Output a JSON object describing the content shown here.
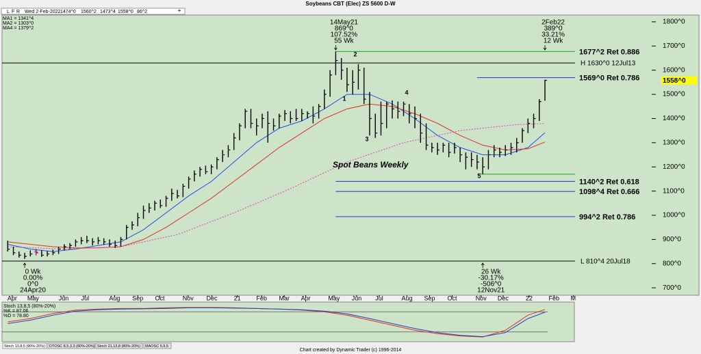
{
  "header": {
    "title": "Soybeans CBT (Elec) ZS 5600 D-W",
    "menu": [
      "L",
      "F",
      "R"
    ],
    "quote": [
      "Wed 2-Feb-2022",
      "1474^0",
      "1560^2",
      "1473^4",
      "1558^0",
      "86^2"
    ]
  },
  "footer": "Chart created by Dynamic Trader  (c) 1996-2014",
  "tabs": [
    "Stoch 13,8,5 (80%-20%)",
    "DTOSC 8,5,3,3 (80%-20%)",
    "Stoch 21,13,8 (80%-20%)",
    "MAOSC 5,9,5"
  ],
  "chart_data": [
    {
      "type": "ohlc",
      "subtitle": "Spot Beans Weekly",
      "xlim": [
        -1,
        100.2
      ],
      "ylim": [
        675,
        1828
      ],
      "xticks": [
        {
          "value": 0.8,
          "label": "Apr"
        },
        {
          "value": 4.5,
          "label": "May"
        },
        {
          "value": 9.9,
          "label": "Jun"
        },
        {
          "value": 13.7,
          "label": "Jul"
        },
        {
          "value": 18.9,
          "label": "Aug"
        },
        {
          "value": 23,
          "label": "Sep"
        },
        {
          "value": 26.9,
          "label": "Oct"
        },
        {
          "value": 31.9,
          "label": "Nov"
        },
        {
          "value": 36.1,
          "label": "Dec"
        },
        {
          "value": 40.6,
          "label": "21"
        },
        {
          "value": 44.9,
          "label": "Feb"
        },
        {
          "value": 48.9,
          "label": "Mar"
        },
        {
          "value": 52.7,
          "label": "Apr"
        },
        {
          "value": 57.7,
          "label": "May"
        },
        {
          "value": 61.7,
          "label": "Jun"
        },
        {
          "value": 65.7,
          "label": "Jul"
        },
        {
          "value": 70.6,
          "label": "Aug"
        },
        {
          "value": 74.6,
          "label": "Sep"
        },
        {
          "value": 78.6,
          "label": "Oct"
        },
        {
          "value": 83.7,
          "label": "Nov"
        },
        {
          "value": 87.6,
          "label": "Dec"
        },
        {
          "value": 92.2,
          "label": "22"
        },
        {
          "value": 96.6,
          "label": "Feb"
        },
        {
          "value": 100,
          "label": "M"
        }
      ],
      "yticks": [
        {
          "value": 700,
          "label": "700^0"
        },
        {
          "value": 800,
          "label": "800^0"
        },
        {
          "value": 900,
          "label": "900^0"
        },
        {
          "value": 1000,
          "label": "1000^0"
        },
        {
          "value": 1100,
          "label": "1100^0"
        },
        {
          "value": 1200,
          "label": "1200^0"
        },
        {
          "value": 1300,
          "label": "1300^0"
        },
        {
          "value": 1400,
          "label": "1400^0"
        },
        {
          "value": 1500,
          "label": "1500^0"
        },
        {
          "value": 1600,
          "label": "1600^0"
        },
        {
          "value": 1700,
          "label": "1700^0"
        },
        {
          "value": 1800,
          "label": "1800^0"
        }
      ],
      "last_price": {
        "value": 1558,
        "label": "1558^0"
      },
      "bars": {
        "high": [
          895,
          870,
          850,
          845,
          855,
          860,
          855,
          852,
          858,
          870,
          880,
          885,
          900,
          910,
          915,
          905,
          910,
          905,
          900,
          895,
          910,
          960,
          975,
          1010,
          1040,
          1050,
          1060,
          1065,
          1080,
          1110,
          1105,
          1130,
          1160,
          1185,
          1200,
          1205,
          1210,
          1240,
          1270,
          1290,
          1340,
          1380,
          1440,
          1440,
          1400,
          1420,
          1430,
          1400,
          1420,
          1435,
          1430,
          1440,
          1440,
          1430,
          1450,
          1460,
          1520,
          1600,
          1677,
          1650,
          1610,
          1600,
          1625,
          1610,
          1510,
          1420,
          1470,
          1470,
          1475,
          1470,
          1470,
          1460,
          1450,
          1420,
          1380,
          1300,
          1300,
          1300,
          1300,
          1300,
          1280,
          1260,
          1260,
          1250,
          1240,
          1270,
          1290,
          1280,
          1290,
          1300,
          1320,
          1360,
          1400,
          1420,
          1480,
          1560.25
        ],
        "low": [
          850,
          835,
          825,
          820,
          830,
          835,
          828,
          830,
          835,
          840,
          855,
          860,
          870,
          880,
          885,
          875,
          880,
          878,
          870,
          865,
          870,
          900,
          940,
          955,
          985,
          1010,
          1020,
          1030,
          1035,
          1060,
          1070,
          1075,
          1110,
          1140,
          1160,
          1170,
          1170,
          1190,
          1220,
          1240,
          1270,
          1310,
          1360,
          1360,
          1330,
          1360,
          1300,
          1350,
          1360,
          1390,
          1380,
          1390,
          1390,
          1400,
          1380,
          1400,
          1440,
          1490,
          1580,
          1560,
          1510,
          1500,
          1520,
          1460,
          1330,
          1320,
          1330,
          1360,
          1400,
          1400,
          1410,
          1380,
          1360,
          1300,
          1270,
          1260,
          1250,
          1260,
          1240,
          1255,
          1220,
          1190,
          1200,
          1190,
          1170,
          1190,
          1240,
          1240,
          1245,
          1250,
          1260,
          1300,
          1340,
          1360,
          1390,
          1473.5
        ],
        "close": [
          860,
          845,
          835,
          830,
          840,
          845,
          835,
          840,
          845,
          860,
          870,
          875,
          890,
          895,
          895,
          890,
          895,
          890,
          880,
          875,
          900,
          950,
          960,
          990,
          1020,
          1030,
          1050,
          1040,
          1070,
          1090,
          1080,
          1120,
          1150,
          1170,
          1190,
          1180,
          1200,
          1230,
          1250,
          1270,
          1320,
          1370,
          1430,
          1380,
          1370,
          1400,
          1380,
          1370,
          1410,
          1420,
          1400,
          1400,
          1420,
          1420,
          1410,
          1450,
          1500,
          1580,
          1640,
          1600,
          1540,
          1550,
          1600,
          1480,
          1400,
          1340,
          1380,
          1460,
          1440,
          1430,
          1460,
          1420,
          1400,
          1340,
          1290,
          1280,
          1270,
          1290,
          1260,
          1280,
          1250,
          1240,
          1230,
          1220,
          1200,
          1250,
          1270,
          1260,
          1270,
          1280,
          1300,
          1350,
          1380,
          1400,
          1470,
          1558
        ]
      },
      "series": [
        {
          "name": "MA1 = 1341^4",
          "color": "#2050e0",
          "style": "solid",
          "x": [
            0,
            4,
            8,
            12,
            16,
            20,
            24,
            28,
            32,
            36,
            40,
            44,
            48,
            52,
            56,
            60,
            64,
            68,
            72,
            76,
            80,
            84,
            88,
            92,
            95
          ],
          "values": [
            880,
            860,
            850,
            860,
            875,
            890,
            940,
            1010,
            1080,
            1140,
            1220,
            1300,
            1360,
            1390,
            1440,
            1500,
            1500,
            1460,
            1400,
            1330,
            1280,
            1250,
            1250,
            1280,
            1341.5
          ]
        },
        {
          "name": "MA2 = 1303^0",
          "color": "#e03020",
          "style": "solid",
          "x": [
            0,
            4,
            8,
            12,
            16,
            20,
            24,
            28,
            32,
            36,
            40,
            44,
            48,
            52,
            56,
            60,
            64,
            68,
            72,
            76,
            80,
            84,
            88,
            92,
            95
          ],
          "values": [
            890,
            880,
            870,
            865,
            865,
            870,
            900,
            950,
            1010,
            1070,
            1140,
            1210,
            1280,
            1340,
            1400,
            1440,
            1460,
            1450,
            1420,
            1380,
            1330,
            1290,
            1270,
            1275,
            1303
          ]
        },
        {
          "name": "MA4 = 1379^2",
          "color": "#e040c0",
          "style": "dashed",
          "x": [
            0,
            10,
            20,
            30,
            40,
            50,
            60,
            70,
            80,
            90,
            95
          ],
          "values": [
            870,
            860,
            870,
            920,
            1010,
            1110,
            1220,
            1300,
            1350,
            1375,
            1379.25
          ]
        }
      ],
      "levels": [
        {
          "label": "1677^2 Ret 0.886",
          "value": 1677.25,
          "color": "#20a020",
          "start": 58
        },
        {
          "label": "H 1630^0 12Jul13",
          "value": 1630,
          "color": "#000000",
          "start": -1
        },
        {
          "label": "1569^0 Ret 0.786",
          "value": 1569,
          "color": "#2030d0",
          "start": 83
        },
        {
          "value": 1170,
          "color": "#20a020",
          "start": 83
        },
        {
          "label": "1140^2 Ret 0.618",
          "value": 1140.25,
          "color": "#2030d0",
          "start": 58
        },
        {
          "label": "1098^4 Ret 0.666",
          "value": 1098.5,
          "color": "#2030d0",
          "start": 58
        },
        {
          "label": "994^2 Ret 0.786",
          "value": 994.25,
          "color": "#2030d0",
          "start": 58
        },
        {
          "label": "L 810^4 20Jul18",
          "value": 810.5,
          "color": "#000000",
          "start": -1
        }
      ],
      "annotations": [
        {
          "lines": [
            "14May21",
            "869^0",
            "107.52%",
            "55 Wk"
          ]
        },
        {
          "lines": [
            "2Feb22",
            "389^0",
            "33.21%",
            "12 Wk"
          ]
        },
        {
          "lines": [
            "0 Wk",
            "0.00%",
            "0^0",
            "24Apr20"
          ]
        },
        {
          "lines": [
            "26 Wk",
            "-30.17%",
            "-506^0",
            "12Nov21"
          ]
        }
      ],
      "pivots": [
        "1",
        "2",
        "3",
        "4",
        "5"
      ]
    },
    {
      "type": "line",
      "xlim": [
        -1,
        100.2
      ],
      "ylim": [
        -5,
        105
      ],
      "levels": [
        80,
        20
      ],
      "series": [
        {
          "name": "%K = 87.06",
          "color": "#e03020",
          "x": [
            0,
            4,
            8,
            12,
            16,
            20,
            24,
            28,
            32,
            36,
            40,
            44,
            48,
            52,
            56,
            60,
            64,
            68,
            72,
            76,
            80,
            84,
            88,
            92,
            95
          ],
          "values": [
            50,
            60,
            75,
            85,
            88,
            90,
            90,
            92,
            93,
            93,
            92,
            90,
            88,
            85,
            80,
            70,
            55,
            40,
            25,
            15,
            8,
            5,
            25,
            70,
            87.06
          ]
        },
        {
          "name": "%D = 78.80",
          "color": "#2040c0",
          "x": [
            0,
            4,
            8,
            12,
            16,
            20,
            24,
            28,
            32,
            36,
            40,
            44,
            48,
            52,
            56,
            60,
            64,
            68,
            72,
            76,
            80,
            84,
            88,
            92,
            95
          ],
          "values": [
            45,
            55,
            70,
            82,
            86,
            88,
            89,
            90,
            92,
            92,
            91,
            90,
            88,
            86,
            82,
            74,
            60,
            45,
            30,
            18,
            10,
            6,
            18,
            60,
            78.8
          ]
        }
      ]
    }
  ]
}
